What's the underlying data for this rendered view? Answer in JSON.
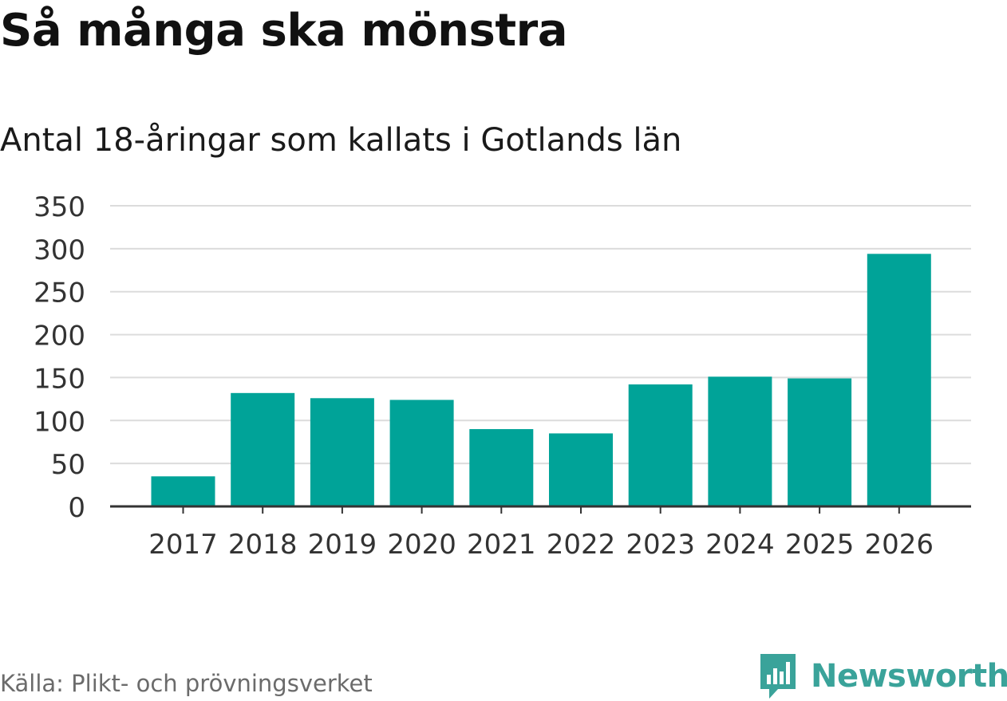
{
  "header": {
    "title": "Så många ska mönstra",
    "subtitle": "Antal 18-åringar som kallats i Gotlands län"
  },
  "footer": {
    "source": "Källa: Plikt- och prövningsverket",
    "brand": "Newsworthy",
    "brand_icon": "newsworthy-logo-icon"
  },
  "colors": {
    "bar": "#00a398",
    "grid": "#dcdcdc",
    "axis": "#333333",
    "brand": "#3aa39a"
  },
  "chart_data": {
    "type": "bar",
    "title": "Så många ska mönstra",
    "subtitle": "Antal 18-åringar som kallats i Gotlands län",
    "categories": [
      "2017",
      "2018",
      "2019",
      "2020",
      "2021",
      "2022",
      "2023",
      "2024",
      "2025",
      "2026"
    ],
    "values": [
      35,
      132,
      126,
      124,
      90,
      85,
      142,
      151,
      149,
      294
    ],
    "yticks": [
      0,
      50,
      100,
      150,
      200,
      250,
      300,
      350
    ],
    "ylim": [
      0,
      350
    ],
    "xlabel": "",
    "ylabel": "",
    "grid": true
  }
}
